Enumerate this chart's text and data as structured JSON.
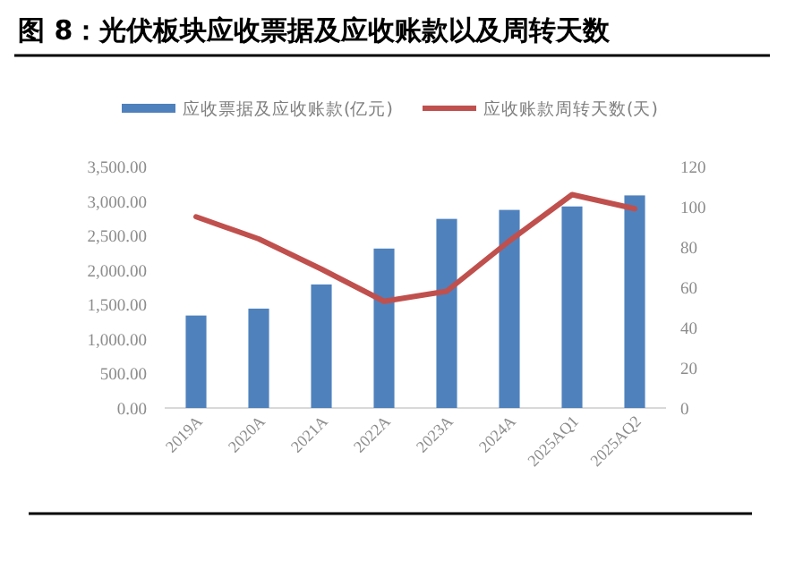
{
  "chart_data": {
    "type": "bar",
    "title": "图 8：光伏板块应收票据及应收账款以及周转天数",
    "categories": [
      "2019A",
      "2020A",
      "2021A",
      "2022A",
      "2023A",
      "2024A",
      "2025AQ1",
      "2025AQ2"
    ],
    "series": [
      {
        "name": "应收票据及应收账款(亿元)",
        "color": "#4f81bd",
        "values": [
          1340,
          1440,
          1790,
          2310,
          2740,
          2870,
          2920,
          3080
        ]
      },
      {
        "name": "应收账款周转天数(天)",
        "type": "line",
        "axis": "y2",
        "color": "#c0504d",
        "values": [
          95,
          84,
          69,
          53,
          58,
          83,
          106,
          99
        ]
      }
    ],
    "ylim": [
      0,
      3500
    ],
    "yticks": [
      {
        "value": 0,
        "label": "0.00"
      },
      {
        "value": 500,
        "label": "500.00"
      },
      {
        "value": 1000,
        "label": "1,000.00"
      },
      {
        "value": 1500,
        "label": "1,500.00"
      },
      {
        "value": 2000,
        "label": "2,000.00"
      },
      {
        "value": 2500,
        "label": "2,500.00"
      },
      {
        "value": 3000,
        "label": "3,000.00"
      },
      {
        "value": 3500,
        "label": "3,500.00"
      }
    ],
    "y2lim": [
      0,
      120
    ],
    "y2ticks": [
      0,
      20,
      40,
      60,
      80,
      100,
      120
    ],
    "legend": "top",
    "grid": false,
    "marker": "none",
    "line_style": "solid"
  }
}
